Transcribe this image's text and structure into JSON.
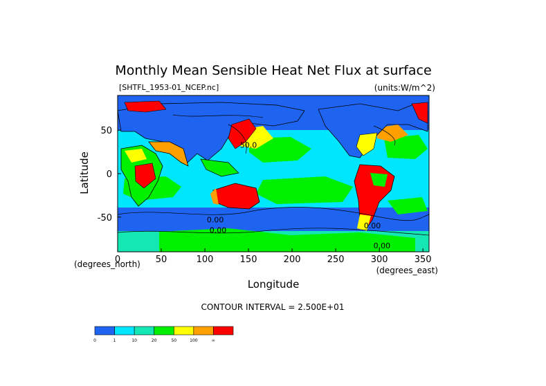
{
  "chart_data": {
    "type": "heatmap",
    "title": "Monthly Mean Sensible Heat Net Flux at surface",
    "file_label": "[SHTFL_1953-01_NCEP.nc]",
    "units_label": "(units:W/m^2)",
    "xlabel": "Longitude",
    "ylabel": "Latitude",
    "x_unit_label": "(degrees_east)",
    "y_unit_label": "(degrees_north)",
    "xlim": [
      0,
      357
    ],
    "ylim": [
      -90,
      90
    ],
    "xticks": [
      0,
      50,
      100,
      150,
      200,
      250,
      300,
      350
    ],
    "yticks": [
      50,
      0,
      -50
    ],
    "contour_interval_text": "CONTOUR INTERVAL = 2.500E+01",
    "contour_labels": [
      {
        "text": "50.0",
        "lon": 150,
        "lat": 30
      },
      {
        "text": "0.00",
        "lon": 112,
        "lat": -56
      },
      {
        "text": "0.00",
        "lon": 115,
        "lat": -68
      },
      {
        "text": "0.00",
        "lon": 292,
        "lat": -63
      },
      {
        "text": "0.00",
        "lon": 303,
        "lat": -86
      }
    ],
    "colorbar": {
      "levels": [
        "0",
        "1",
        "10",
        "20",
        "50",
        "100",
        "∞"
      ],
      "colors": [
        "#1e64f0",
        "#00e6ff",
        "#14e6b4",
        "#00f000",
        "#ffff00",
        "#ffa000",
        "#ff0000"
      ]
    }
  }
}
